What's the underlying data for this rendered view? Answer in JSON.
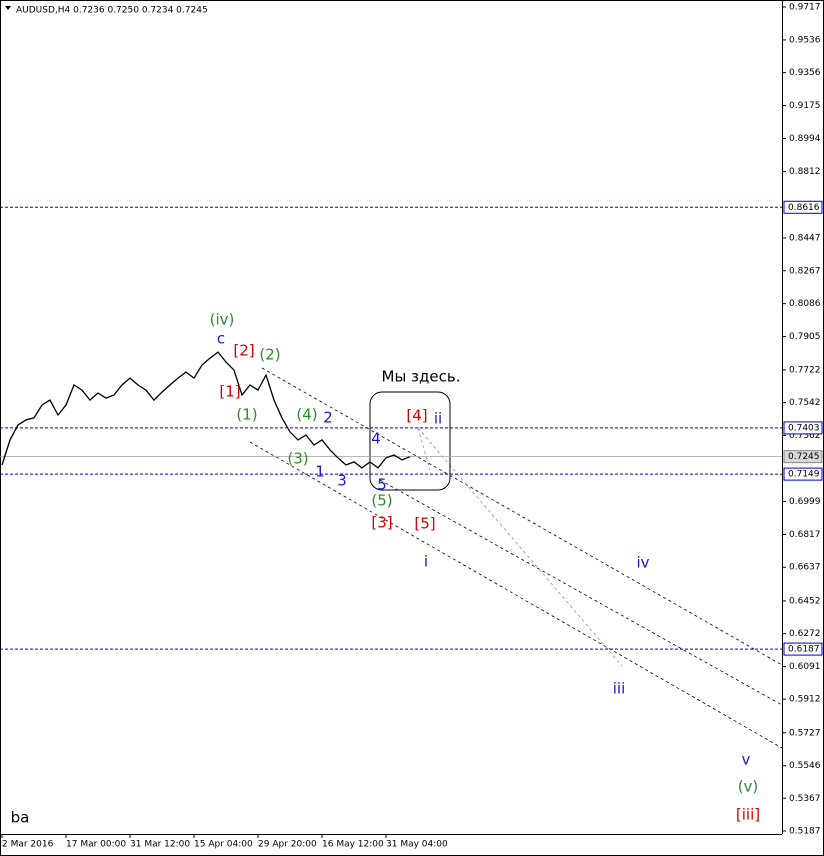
{
  "chart_data": {
    "type": "line",
    "header": "AUDUSD,H4  0.7236 0.7250 0.7234 0.7245",
    "color": "#000000",
    "values": [
      0.7199,
      0.7337,
      0.7419,
      0.7447,
      0.7458,
      0.7529,
      0.7556,
      0.7474,
      0.7529,
      0.7639,
      0.7611,
      0.7556,
      0.7595,
      0.7567,
      0.7584,
      0.7639,
      0.7677,
      0.7639,
      0.7611,
      0.7556,
      0.76,
      0.7639,
      0.7677,
      0.771,
      0.7677,
      0.7749,
      0.7787,
      0.782,
      0.7765,
      0.7721,
      0.7584,
      0.7639,
      0.7611,
      0.7694,
      0.7556,
      0.7458,
      0.7381,
      0.7337,
      0.7364,
      0.7309,
      0.7337,
      0.7282,
      0.7238,
      0.7199,
      0.7216,
      0.7183,
      0.7216,
      0.7183,
      0.7238,
      0.7254,
      0.7227,
      0.7245
    ],
    "xlim": [
      0,
      97.5
    ],
    "xticks": [
      {
        "value": 0,
        "label": "2 Mar 2016"
      },
      {
        "value": 8,
        "label": "17 Mar 00:00"
      },
      {
        "value": 16,
        "label": "31 Mar 12:00"
      },
      {
        "value": 24,
        "label": "15 Apr 04:00"
      },
      {
        "value": 32,
        "label": "29 Apr 20:00"
      },
      {
        "value": 40,
        "label": "16 May 12:00"
      },
      {
        "value": 48,
        "label": "31 May 04:00"
      }
    ],
    "ylim": [
      0.5187,
      0.9717
    ],
    "yticks": [
      0.9717,
      0.9536,
      0.9356,
      0.9175,
      0.8994,
      0.8812,
      0.8447,
      0.8267,
      0.8086,
      0.7905,
      0.7722,
      0.7542,
      0.7362,
      0.6999,
      0.6817,
      0.6637,
      0.6452,
      0.6272,
      0.6091,
      0.5912,
      0.5727,
      0.5546,
      0.5367,
      0.5187
    ],
    "levels": [
      {
        "value": 0.8616,
        "color": "#0000cc"
      },
      {
        "value": 0.7403,
        "color": "#0000cc"
      },
      {
        "value": 0.7149,
        "color": "#0000cc"
      },
      {
        "value": 0.6187,
        "color": "#0000cc"
      },
      {
        "value": 0.7245,
        "color": "#a0a0a0"
      }
    ],
    "annotations": [
      {
        "text": "(iv)",
        "color": "#2e8b2e"
      },
      {
        "text": "c",
        "color": "#1a1acc"
      },
      {
        "text": "[2]",
        "color": "#dd0000"
      },
      {
        "text": "(2)",
        "color": "#2e8b2e"
      },
      {
        "text": "[1]",
        "color": "#dd0000"
      },
      {
        "text": "(1)",
        "color": "#2e8b2e"
      },
      {
        "text": "(4)",
        "color": "#2e8b2e"
      },
      {
        "text": "2",
        "color": "#1a1acc"
      },
      {
        "text": "(3)",
        "color": "#2e8b2e"
      },
      {
        "text": "1",
        "color": "#1a1acc"
      },
      {
        "text": "3",
        "color": "#1a1acc"
      },
      {
        "text": "4",
        "color": "#1a1acc"
      },
      {
        "text": "5",
        "color": "#1a1acc"
      },
      {
        "text": "(5)",
        "color": "#2e8b2e"
      },
      {
        "text": "[3]",
        "color": "#dd0000"
      },
      {
        "text": "[5]",
        "color": "#dd0000"
      },
      {
        "text": "[4]",
        "color": "#dd0000"
      },
      {
        "text": "ii",
        "color": "#1a1acc"
      },
      {
        "text": "Мы здесь.",
        "color": "#000000"
      },
      {
        "text": "i",
        "color": "#1a1acc"
      },
      {
        "text": "iv",
        "color": "#1a1acc"
      },
      {
        "text": "iii",
        "color": "#1a1acc"
      },
      {
        "text": "v",
        "color": "#1a1acc"
      },
      {
        "text": "(v)",
        "color": "#2e8b2e"
      },
      {
        "text": "[iii]",
        "color": "#dd0000"
      },
      {
        "text": "ba",
        "color": "#000000"
      }
    ]
  }
}
